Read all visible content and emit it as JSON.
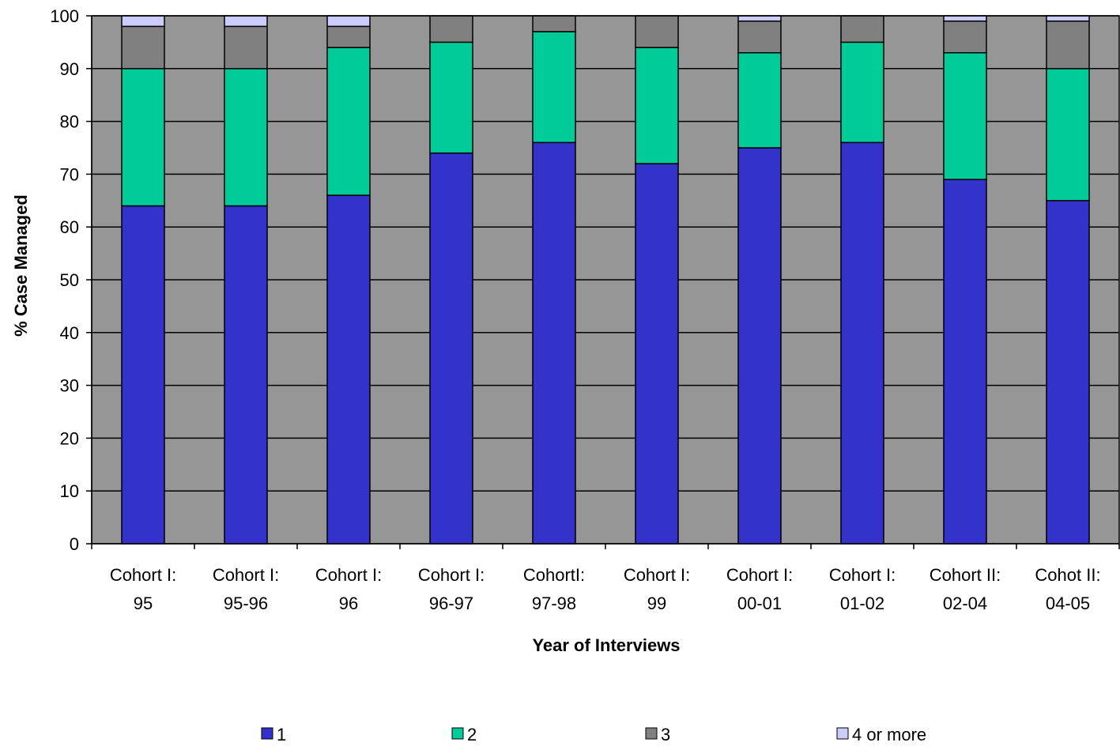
{
  "chart_data": {
    "type": "bar",
    "stacked": true,
    "categories": [
      [
        "Cohort I:",
        "95"
      ],
      [
        "Cohort I:",
        "95-96"
      ],
      [
        "Cohort I:",
        "96"
      ],
      [
        "Cohort I:",
        "96-97"
      ],
      [
        "CohortI:",
        "97-98"
      ],
      [
        "Cohort I:",
        "99"
      ],
      [
        "Cohort I:",
        "00-01"
      ],
      [
        "Cohort I:",
        "01-02"
      ],
      [
        "Cohort II:",
        "02-04"
      ],
      [
        "Cohot II:",
        "04-05"
      ]
    ],
    "series": [
      {
        "name": "1",
        "color": "#3333cc",
        "values": [
          64,
          64,
          66,
          74,
          76,
          72,
          75,
          76,
          69,
          65
        ]
      },
      {
        "name": "2",
        "color": "#00cc99",
        "values": [
          26,
          26,
          28,
          21,
          21,
          22,
          18,
          19,
          24,
          25
        ]
      },
      {
        "name": "3",
        "color": "#808080",
        "values": [
          8,
          8,
          4,
          5,
          3,
          6,
          6,
          5,
          6,
          9
        ]
      },
      {
        "name": "4 or more",
        "color": "#ccccff",
        "values": [
          2,
          2,
          2,
          0,
          0,
          0,
          1,
          0,
          1,
          1
        ]
      }
    ],
    "xlabel": "Year of Interviews",
    "ylabel": "% Case Managed",
    "ylim": [
      0,
      100
    ],
    "yticks": [
      0,
      10,
      20,
      30,
      40,
      50,
      60,
      70,
      80,
      90,
      100
    ],
    "grid": true,
    "plot_background": "#969696",
    "legend_position": "bottom"
  }
}
